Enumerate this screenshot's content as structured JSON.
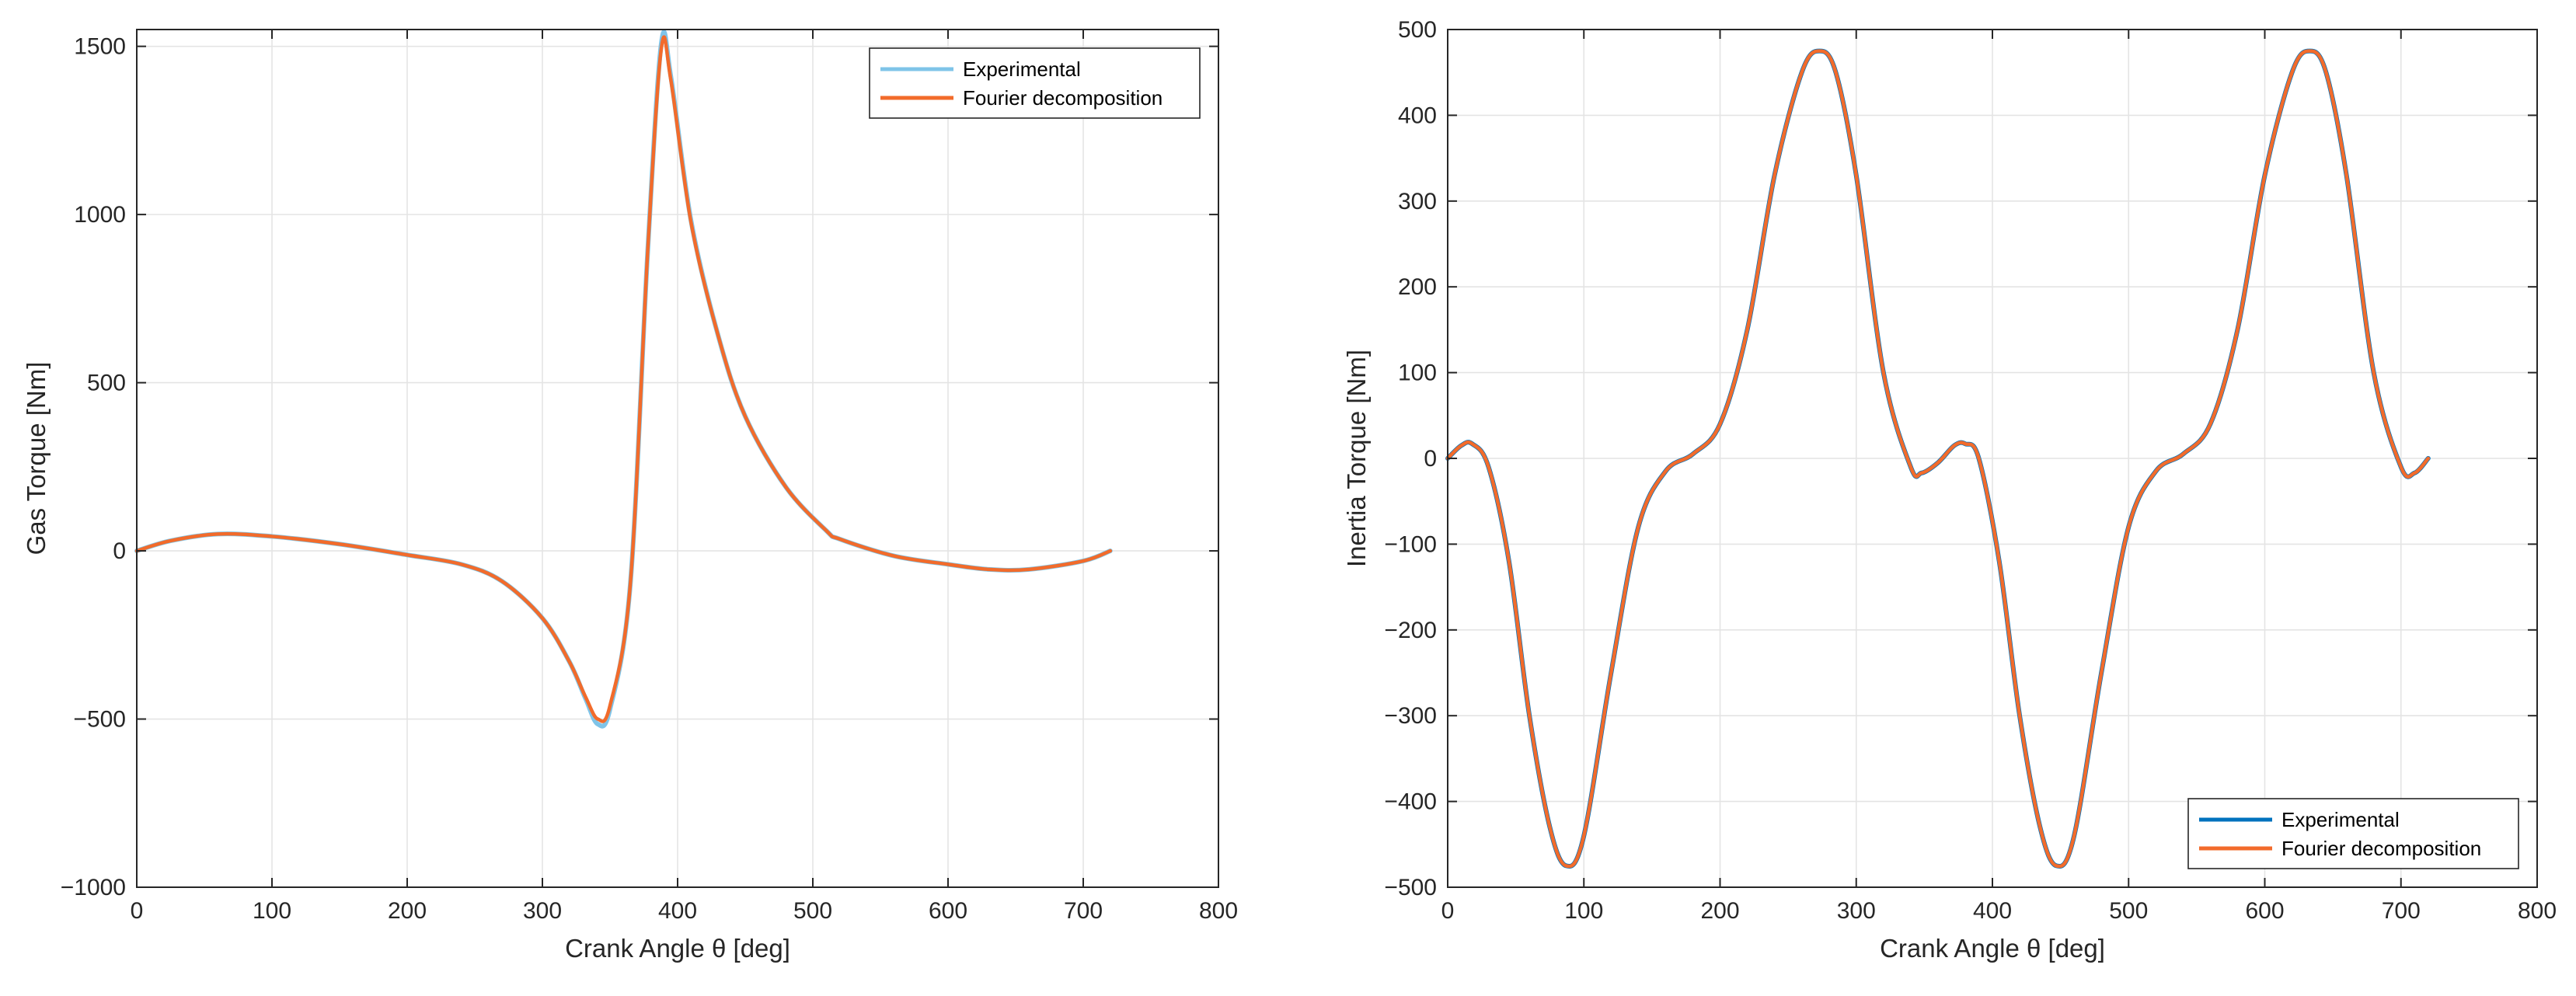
{
  "chart_data": [
    {
      "type": "line",
      "title": "",
      "xlabel": "Crank Angle θ [deg]",
      "ylabel": "Gas Torque [Nm]",
      "xlim": [
        0,
        800
      ],
      "ylim": [
        -1000,
        1550
      ],
      "xticks": [
        0,
        100,
        200,
        300,
        400,
        500,
        600,
        700,
        800
      ],
      "yticks": [
        -1000,
        -500,
        0,
        500,
        1000,
        1500
      ],
      "grid": true,
      "legend_position": "top-right",
      "series": [
        {
          "name": "Experimental",
          "color": "#7fc4e8",
          "x": [
            0,
            25,
            60,
            100,
            150,
            200,
            240,
            270,
            300,
            320,
            332,
            341,
            350,
            365,
            378,
            388,
            395,
            410,
            430,
            450,
            480,
            510,
            520,
            560,
            600,
            630,
            660,
            700,
            720
          ],
          "y": [
            0,
            30,
            50,
            43,
            20,
            -12,
            -40,
            -90,
            -200,
            -330,
            -440,
            -515,
            -470,
            -100,
            900,
            1510,
            1410,
            980,
            640,
            400,
            190,
            60,
            35,
            -15,
            -40,
            -55,
            -55,
            -30,
            0
          ]
        },
        {
          "name": "Fourier decomposition",
          "color": "#f26b2b",
          "x": [
            0,
            25,
            60,
            100,
            150,
            200,
            240,
            270,
            300,
            320,
            332,
            341,
            350,
            365,
            378,
            388,
            395,
            410,
            430,
            450,
            480,
            510,
            520,
            560,
            600,
            630,
            660,
            700,
            720
          ],
          "y": [
            0,
            30,
            50,
            43,
            20,
            -12,
            -40,
            -90,
            -200,
            -330,
            -435,
            -500,
            -460,
            -100,
            900,
            1495,
            1400,
            975,
            640,
            400,
            190,
            60,
            35,
            -15,
            -40,
            -55,
            -55,
            -30,
            0
          ]
        }
      ]
    },
    {
      "type": "line",
      "title": "",
      "xlabel": "Crank Angle θ [deg]",
      "ylabel": "Inertia Torque [Nm]",
      "xlim": [
        0,
        800
      ],
      "ylim": [
        -500,
        500
      ],
      "xticks": [
        0,
        100,
        200,
        300,
        400,
        500,
        600,
        700,
        800
      ],
      "yticks": [
        -500,
        -400,
        -300,
        -200,
        -100,
        0,
        100,
        200,
        300,
        400,
        500
      ],
      "grid": true,
      "legend_position": "bottom-right",
      "series": [
        {
          "name": "Experimental",
          "color": "#0072bd",
          "x": [
            0,
            10,
            18,
            30,
            45,
            60,
            75,
            87,
            100,
            120,
            140,
            160,
            180,
            200,
            220,
            240,
            260,
            273,
            285,
            300,
            320,
            340,
            348,
            360,
            372,
            380,
            390,
            405,
            420,
            435,
            447,
            460,
            480,
            500,
            520,
            540,
            560,
            580,
            600,
            620,
            633,
            645,
            660,
            680,
            700,
            710,
            720
          ],
          "y": [
            0,
            15,
            17,
            -10,
            -120,
            -300,
            -430,
            -475,
            -440,
            -250,
            -80,
            -15,
            5,
            40,
            150,
            330,
            450,
            475,
            450,
            330,
            100,
            -10,
            -17,
            -5,
            15,
            17,
            0,
            -120,
            -300,
            -430,
            -475,
            -440,
            -250,
            -80,
            -15,
            5,
            40,
            150,
            330,
            450,
            475,
            450,
            330,
            100,
            -10,
            -17,
            0
          ]
        },
        {
          "name": "Fourier decomposition",
          "color": "#f26b2b",
          "x": [
            0,
            10,
            18,
            30,
            45,
            60,
            75,
            87,
            100,
            120,
            140,
            160,
            180,
            200,
            220,
            240,
            260,
            273,
            285,
            300,
            320,
            340,
            348,
            360,
            372,
            380,
            390,
            405,
            420,
            435,
            447,
            460,
            480,
            500,
            520,
            540,
            560,
            580,
            600,
            620,
            633,
            645,
            660,
            680,
            700,
            710,
            720
          ],
          "y": [
            0,
            15,
            17,
            -10,
            -120,
            -300,
            -430,
            -475,
            -440,
            -250,
            -80,
            -15,
            5,
            40,
            150,
            330,
            450,
            475,
            450,
            330,
            100,
            -10,
            -17,
            -5,
            15,
            17,
            0,
            -120,
            -300,
            -430,
            -475,
            -440,
            -250,
            -80,
            -15,
            5,
            40,
            150,
            330,
            450,
            475,
            450,
            330,
            100,
            -10,
            -17,
            0
          ]
        }
      ]
    }
  ]
}
